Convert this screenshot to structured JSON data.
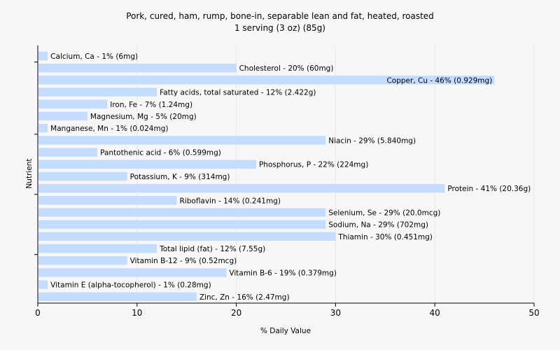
{
  "chart_data": {
    "type": "bar",
    "orientation": "horizontal",
    "title": "Pork, cured, ham, rump, bone-in, separable lean and fat, heated, roasted",
    "subtitle": "1 serving (3 oz) (85g)",
    "xlabel": "% Daily Value",
    "ylabel": "Nutrient",
    "xlim": [
      0,
      50
    ],
    "xticks": [
      0,
      10,
      20,
      30,
      40,
      50
    ],
    "grid": true,
    "bar_color": "#c4dcff",
    "categories": [
      "Calcium, Ca",
      "Cholesterol",
      "Copper, Cu",
      "Fatty acids, total saturated",
      "Iron, Fe",
      "Magnesium, Mg",
      "Manganese, Mn",
      "Niacin",
      "Pantothenic acid",
      "Phosphorus, P",
      "Potassium, K",
      "Protein",
      "Riboflavin",
      "Selenium, Se",
      "Sodium, Na",
      "Thiamin",
      "Total lipid (fat)",
      "Vitamin B-12",
      "Vitamin B-6",
      "Vitamin E (alpha-tocopherol)",
      "Zinc, Zn"
    ],
    "values": [
      1,
      20,
      46,
      12,
      7,
      5,
      1,
      29,
      6,
      22,
      9,
      41,
      14,
      29,
      29,
      30,
      12,
      9,
      19,
      1,
      16
    ],
    "labels": [
      "Calcium, Ca - 1% (6mg)",
      "Cholesterol - 20% (60mg)",
      "Copper, Cu - 46% (0.929mg)",
      "Fatty acids, total saturated - 12% (2.422g)",
      "Iron, Fe - 7% (1.24mg)",
      "Magnesium, Mg - 5% (20mg)",
      "Manganese, Mn - 1% (0.024mg)",
      "Niacin - 29% (5.840mg)",
      "Pantothenic acid - 6% (0.599mg)",
      "Phosphorus, P - 22% (224mg)",
      "Potassium, K - 9% (314mg)",
      "Protein - 41% (20.36g)",
      "Riboflavin - 14% (0.241mg)",
      "Selenium, Se - 29% (20.0mcg)",
      "Sodium, Na - 29% (702mg)",
      "Thiamin - 30% (0.451mg)",
      "Total lipid (fat) - 12% (7.55g)",
      "Vitamin B-12 - 9% (0.52mcg)",
      "Vitamin B-6 - 19% (0.379mg)",
      "Vitamin E (alpha-tocopherol) - 1% (0.28mg)",
      "Zinc, Zn - 16% (2.47mg)"
    ],
    "inside_label_indices": [
      2
    ]
  }
}
